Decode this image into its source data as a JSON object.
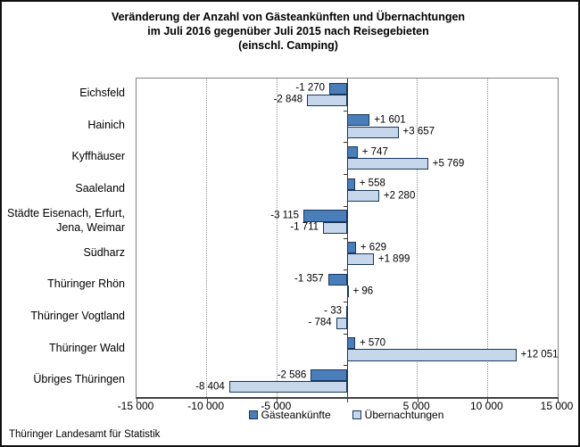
{
  "title": {
    "lines": [
      "Veränderung der Anzahl von Gästeankünften und Übernachtungen",
      "im Juli 2016 gegenüber Juli 2015 nach Reisegebieten",
      "(einschl. Camping)"
    ]
  },
  "chart_data": {
    "type": "bar",
    "orientation": "horizontal",
    "title": "Veränderung der Anzahl von Gästeankünften und Übernachtungen im Juli 2016 gegenüber Juli 2015 nach Reisegebieten (einschl. Camping)",
    "xlabel": "",
    "ylabel": "",
    "grid": "vertical-dotted",
    "legend_position": "bottom",
    "xlim": [
      -15000,
      15000
    ],
    "categories": [
      "Eichsfeld",
      "Hainich",
      "Kyffhäuser",
      "Saaleland",
      "Städte Eisenach, Erfurt,\nJena, Weimar",
      "Südharz",
      "Thüringer Rhön",
      "Thüringer Vogtland",
      "Thüringer Wald",
      "Übriges Thüringen"
    ],
    "series": [
      {
        "name": "Gästeankünfte",
        "color": "#4a7ebb",
        "values": [
          -1270,
          1601,
          747,
          558,
          -3115,
          629,
          -1357,
          -33,
          570,
          -2586
        ],
        "labels": [
          "-1 270",
          "+1 601",
          "+ 747",
          "+ 558",
          "-3 115",
          "+ 629",
          "-1 357",
          "- 33",
          "+ 570",
          "-2 586"
        ]
      },
      {
        "name": "Übernachtungen",
        "color": "#c6d7ec",
        "values": [
          -2848,
          3657,
          5769,
          2280,
          -1711,
          1899,
          96,
          -784,
          12051,
          -8404
        ],
        "labels": [
          "-2 848",
          "+3 657",
          "+5 769",
          "+2 280",
          "-1 711",
          "+1 899",
          "+ 96",
          "- 784",
          "+12 051",
          "-8 404"
        ]
      }
    ],
    "x_ticks": [
      {
        "value": -15000,
        "label": "-15 000"
      },
      {
        "value": -10000,
        "label": "-10 000"
      },
      {
        "value": -5000,
        "label": "-5 000"
      },
      {
        "value": 0,
        "label": ""
      },
      {
        "value": 5000,
        "label": "5 000"
      },
      {
        "value": 10000,
        "label": "10 000"
      },
      {
        "value": 15000,
        "label": "15 000"
      }
    ]
  },
  "colors": {
    "bar_border": "#17375d",
    "gridline": "#909090",
    "plot_border": "#808080",
    "axis": "#404040",
    "background": "#ffffff"
  },
  "footer": {
    "source": "Thüringer Landesamt für Statistik"
  }
}
